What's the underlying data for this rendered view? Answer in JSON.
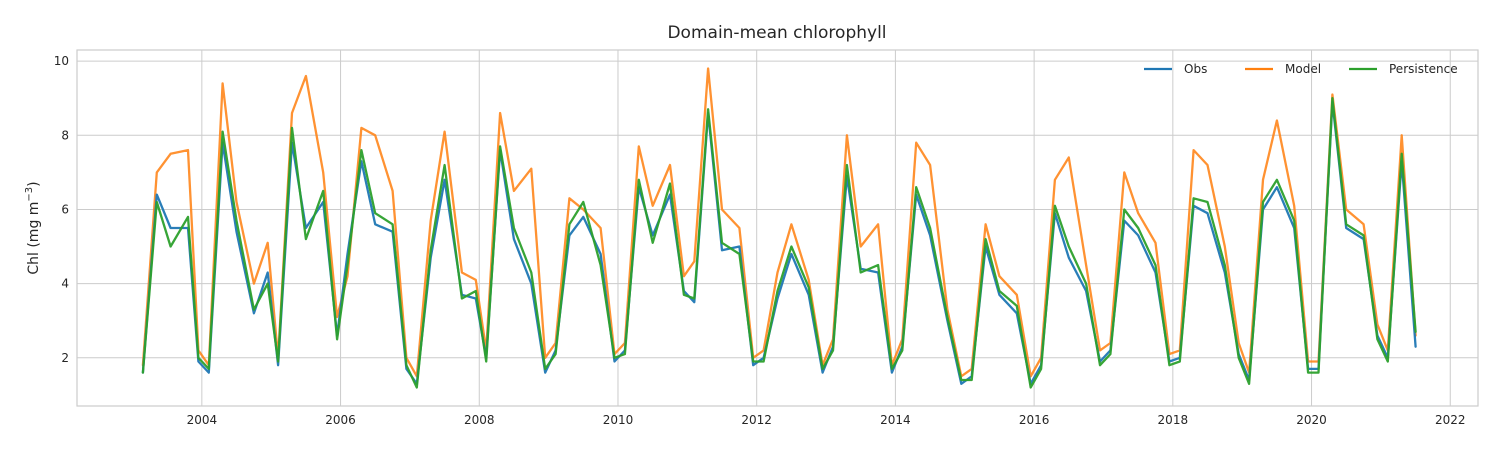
{
  "chart_data": {
    "type": "line",
    "title": "Domain-mean chlorophyll",
    "ylabel_main": "Chl (mg m",
    "ylabel_exp": "−3",
    "ylabel_close": ")",
    "xlabel": "",
    "xlim": [
      2002.2,
      2022.4
    ],
    "ylim": [
      0.7,
      10.3
    ],
    "x_ticks": [
      2004,
      2006,
      2008,
      2010,
      2012,
      2014,
      2016,
      2018,
      2020,
      2022
    ],
    "x_tick_labels": [
      "2004",
      "2006",
      "2008",
      "2010",
      "2012",
      "2014",
      "2016",
      "2018",
      "2020",
      "2022"
    ],
    "y_ticks": [
      2,
      4,
      6,
      8,
      10
    ],
    "y_tick_labels": [
      "2",
      "4",
      "6",
      "8",
      "10"
    ],
    "grid": true,
    "legend_position": "top-right",
    "series": [
      {
        "name": "Obs",
        "color": "#1f77b4",
        "x": [
          2003.15,
          2003.35,
          2003.55,
          2003.8,
          2003.95,
          2004.1,
          2004.3,
          2004.5,
          2004.75,
          2004.95,
          2005.1,
          2005.3,
          2005.5,
          2005.75,
          2005.95,
          2006.1,
          2006.3,
          2006.5,
          2006.75,
          2006.95,
          2007.1,
          2007.3,
          2007.5,
          2007.75,
          2007.95,
          2008.1,
          2008.3,
          2008.5,
          2008.75,
          2008.95,
          2009.1,
          2009.3,
          2009.5,
          2009.75,
          2009.95,
          2010.1,
          2010.3,
          2010.5,
          2010.75,
          2010.95,
          2011.1,
          2011.3,
          2011.5,
          2011.75,
          2011.95,
          2012.1,
          2012.3,
          2012.5,
          2012.75,
          2012.95,
          2013.1,
          2013.3,
          2013.5,
          2013.75,
          2013.95,
          2014.1,
          2014.3,
          2014.5,
          2014.75,
          2014.95,
          2015.1,
          2015.3,
          2015.5,
          2015.75,
          2015.95,
          2016.1,
          2016.3,
          2016.5,
          2016.75,
          2016.95,
          2017.1,
          2017.3,
          2017.5,
          2017.75,
          2017.95,
          2018.1,
          2018.3,
          2018.5,
          2018.75,
          2018.95,
          2019.1,
          2019.3,
          2019.5,
          2019.75,
          2019.95,
          2020.1,
          2020.3,
          2020.5,
          2020.75,
          2020.95,
          2021.1,
          2021.3,
          2021.5
        ],
        "values": [
          1.6,
          6.4,
          5.5,
          5.5,
          1.9,
          1.6,
          7.8,
          5.4,
          3.2,
          4.3,
          1.8,
          7.8,
          5.5,
          6.2,
          2.6,
          4.8,
          7.3,
          5.6,
          5.4,
          1.7,
          1.3,
          4.7,
          6.8,
          3.7,
          3.6,
          2.0,
          7.6,
          5.2,
          4.0,
          1.6,
          2.2,
          5.3,
          5.8,
          4.8,
          1.9,
          2.2,
          6.6,
          5.3,
          6.4,
          3.8,
          3.5,
          8.6,
          4.9,
          5.0,
          1.8,
          2.0,
          3.6,
          4.8,
          3.7,
          1.6,
          2.3,
          6.9,
          4.4,
          4.3,
          1.6,
          2.3,
          6.4,
          5.3,
          3.0,
          1.3,
          1.5,
          5.0,
          3.7,
          3.2,
          1.3,
          1.8,
          5.9,
          4.7,
          3.8,
          1.9,
          2.2,
          5.7,
          5.3,
          4.3,
          1.9,
          2.0,
          6.1,
          5.9,
          4.3,
          2.1,
          1.4,
          6.0,
          6.6,
          5.5,
          1.7,
          1.7,
          8.9,
          5.5,
          5.2,
          2.6,
          2.0,
          7.3,
          2.3
        ]
      },
      {
        "name": "Model",
        "color": "#ff7f0e",
        "x": [
          2003.15,
          2003.35,
          2003.55,
          2003.8,
          2003.95,
          2004.1,
          2004.3,
          2004.5,
          2004.75,
          2004.95,
          2005.1,
          2005.3,
          2005.5,
          2005.75,
          2005.95,
          2006.1,
          2006.3,
          2006.5,
          2006.75,
          2006.95,
          2007.1,
          2007.3,
          2007.5,
          2007.75,
          2007.95,
          2008.1,
          2008.3,
          2008.5,
          2008.75,
          2008.95,
          2009.1,
          2009.3,
          2009.5,
          2009.75,
          2009.95,
          2010.1,
          2010.3,
          2010.5,
          2010.75,
          2010.95,
          2011.1,
          2011.3,
          2011.5,
          2011.75,
          2011.95,
          2012.1,
          2012.3,
          2012.5,
          2012.75,
          2012.95,
          2013.1,
          2013.3,
          2013.5,
          2013.75,
          2013.95,
          2014.1,
          2014.3,
          2014.5,
          2014.75,
          2014.95,
          2015.1,
          2015.3,
          2015.5,
          2015.75,
          2015.95,
          2016.1,
          2016.3,
          2016.5,
          2016.75,
          2016.95,
          2017.1,
          2017.3,
          2017.5,
          2017.75,
          2017.95,
          2018.1,
          2018.3,
          2018.5,
          2018.75,
          2018.95,
          2019.1,
          2019.3,
          2019.5,
          2019.75,
          2019.95,
          2020.1,
          2020.3,
          2020.5,
          2020.75,
          2020.95,
          2021.1,
          2021.3,
          2021.5
        ],
        "values": [
          1.8,
          7.0,
          7.5,
          7.6,
          2.2,
          1.8,
          9.4,
          6.2,
          4.0,
          5.1,
          2.0,
          8.6,
          9.6,
          7.0,
          3.1,
          4.2,
          8.2,
          8.0,
          6.5,
          2.0,
          1.5,
          5.7,
          8.1,
          4.3,
          4.1,
          2.2,
          8.6,
          6.5,
          7.1,
          2.0,
          2.4,
          6.3,
          6.0,
          5.5,
          2.1,
          2.4,
          7.7,
          6.1,
          7.2,
          4.2,
          4.6,
          9.8,
          6.0,
          5.5,
          2.0,
          2.2,
          4.3,
          5.6,
          4.1,
          1.8,
          2.5,
          8.0,
          5.0,
          5.6,
          1.8,
          2.5,
          7.8,
          7.2,
          3.3,
          1.5,
          1.7,
          5.6,
          4.2,
          3.7,
          1.5,
          2.0,
          6.8,
          7.4,
          4.5,
          2.2,
          2.4,
          7.0,
          5.9,
          5.1,
          2.1,
          2.2,
          7.6,
          7.2,
          5.0,
          2.4,
          1.6,
          6.8,
          8.4,
          6.1,
          1.9,
          1.9,
          9.1,
          6.0,
          5.6,
          2.9,
          2.2,
          8.0,
          2.6
        ]
      },
      {
        "name": "Persistence",
        "color": "#2ca02c",
        "x": [
          2003.15,
          2003.35,
          2003.55,
          2003.8,
          2003.95,
          2004.1,
          2004.3,
          2004.5,
          2004.75,
          2004.95,
          2005.1,
          2005.3,
          2005.5,
          2005.75,
          2005.95,
          2006.1,
          2006.3,
          2006.5,
          2006.75,
          2006.95,
          2007.1,
          2007.3,
          2007.5,
          2007.75,
          2007.95,
          2008.1,
          2008.3,
          2008.5,
          2008.75,
          2008.95,
          2009.1,
          2009.3,
          2009.5,
          2009.75,
          2009.95,
          2010.1,
          2010.3,
          2010.5,
          2010.75,
          2010.95,
          2011.1,
          2011.3,
          2011.5,
          2011.75,
          2011.95,
          2012.1,
          2012.3,
          2012.5,
          2012.75,
          2012.95,
          2013.1,
          2013.3,
          2013.5,
          2013.75,
          2013.95,
          2014.1,
          2014.3,
          2014.5,
          2014.75,
          2014.95,
          2015.1,
          2015.3,
          2015.5,
          2015.75,
          2015.95,
          2016.1,
          2016.3,
          2016.5,
          2016.75,
          2016.95,
          2017.1,
          2017.3,
          2017.5,
          2017.75,
          2017.95,
          2018.1,
          2018.3,
          2018.5,
          2018.75,
          2018.95,
          2019.1,
          2019.3,
          2019.5,
          2019.75,
          2019.95,
          2020.1,
          2020.3,
          2020.5,
          2020.75,
          2020.95,
          2021.1,
          2021.3,
          2021.5
        ],
        "values": [
          1.6,
          6.2,
          5.0,
          5.8,
          2.0,
          1.7,
          8.1,
          5.7,
          3.3,
          4.0,
          1.9,
          8.2,
          5.2,
          6.5,
          2.5,
          4.5,
          7.6,
          5.9,
          5.6,
          1.8,
          1.2,
          4.9,
          7.2,
          3.6,
          3.8,
          1.9,
          7.7,
          5.5,
          4.3,
          1.7,
          2.1,
          5.6,
          6.2,
          4.5,
          2.0,
          2.1,
          6.8,
          5.1,
          6.7,
          3.7,
          3.6,
          8.7,
          5.1,
          4.8,
          1.9,
          1.9,
          3.8,
          5.0,
          3.9,
          1.7,
          2.2,
          7.2,
          4.3,
          4.5,
          1.7,
          2.2,
          6.6,
          5.5,
          3.1,
          1.4,
          1.4,
          5.2,
          3.8,
          3.4,
          1.2,
          1.7,
          6.1,
          5.0,
          4.0,
          1.8,
          2.1,
          6.0,
          5.5,
          4.5,
          1.8,
          1.9,
          6.3,
          6.2,
          4.5,
          2.0,
          1.3,
          6.2,
          6.8,
          5.7,
          1.6,
          1.6,
          9.0,
          5.6,
          5.3,
          2.5,
          1.9,
          7.5,
          2.7
        ]
      }
    ]
  }
}
